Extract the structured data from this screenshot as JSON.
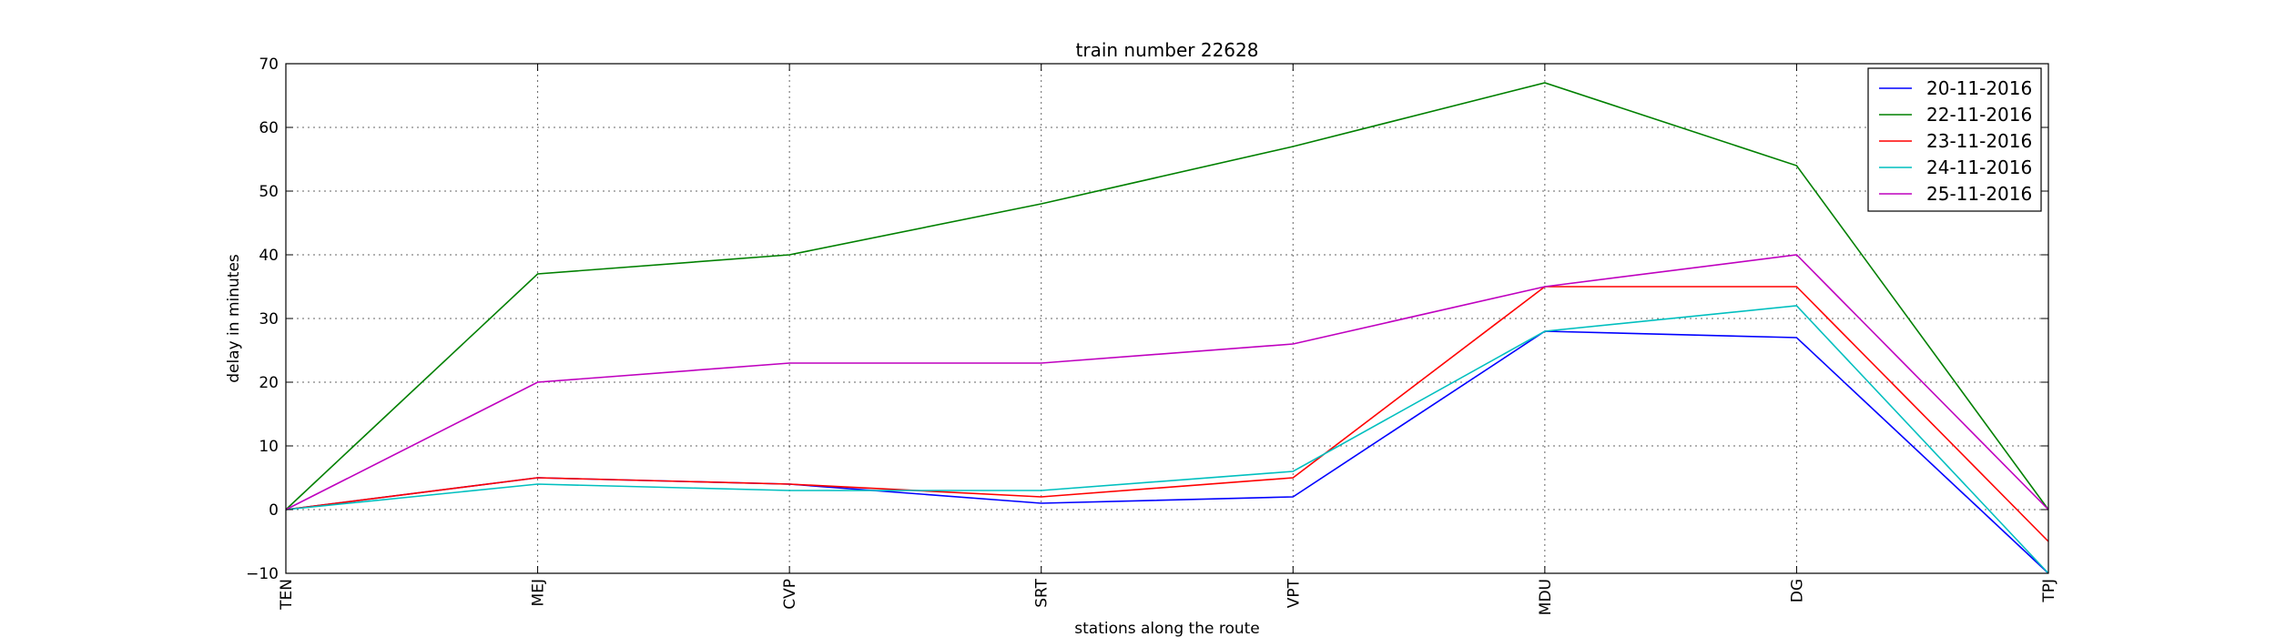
{
  "chart_data": {
    "type": "line",
    "title": "train number 22628",
    "xlabel": "stations along the route",
    "ylabel": "delay in minutes",
    "categories": [
      "TEN",
      "MEJ",
      "CVP",
      "SRT",
      "VPT",
      "MDU",
      "DG",
      "TPJ"
    ],
    "ylim": [
      -10,
      70
    ],
    "yticks": [
      -10,
      0,
      10,
      20,
      30,
      40,
      50,
      60,
      70
    ],
    "grid": true,
    "legend_position": "top-right",
    "series": [
      {
        "name": "20-11-2016",
        "color": "#0000ff",
        "values": [
          0,
          5,
          4,
          1,
          2,
          28,
          27,
          -10
        ]
      },
      {
        "name": "22-11-2016",
        "color": "#008000",
        "values": [
          0,
          37,
          40,
          48,
          57,
          67,
          54,
          0
        ]
      },
      {
        "name": "23-11-2016",
        "color": "#ff0000",
        "values": [
          0,
          5,
          4,
          2,
          5,
          35,
          35,
          -5
        ]
      },
      {
        "name": "24-11-2016",
        "color": "#00bfbf",
        "values": [
          0,
          4,
          3,
          3,
          6,
          28,
          32,
          -10
        ]
      },
      {
        "name": "25-11-2016",
        "color": "#bf00bf",
        "values": [
          0,
          20,
          23,
          23,
          26,
          35,
          40,
          0
        ]
      }
    ]
  }
}
